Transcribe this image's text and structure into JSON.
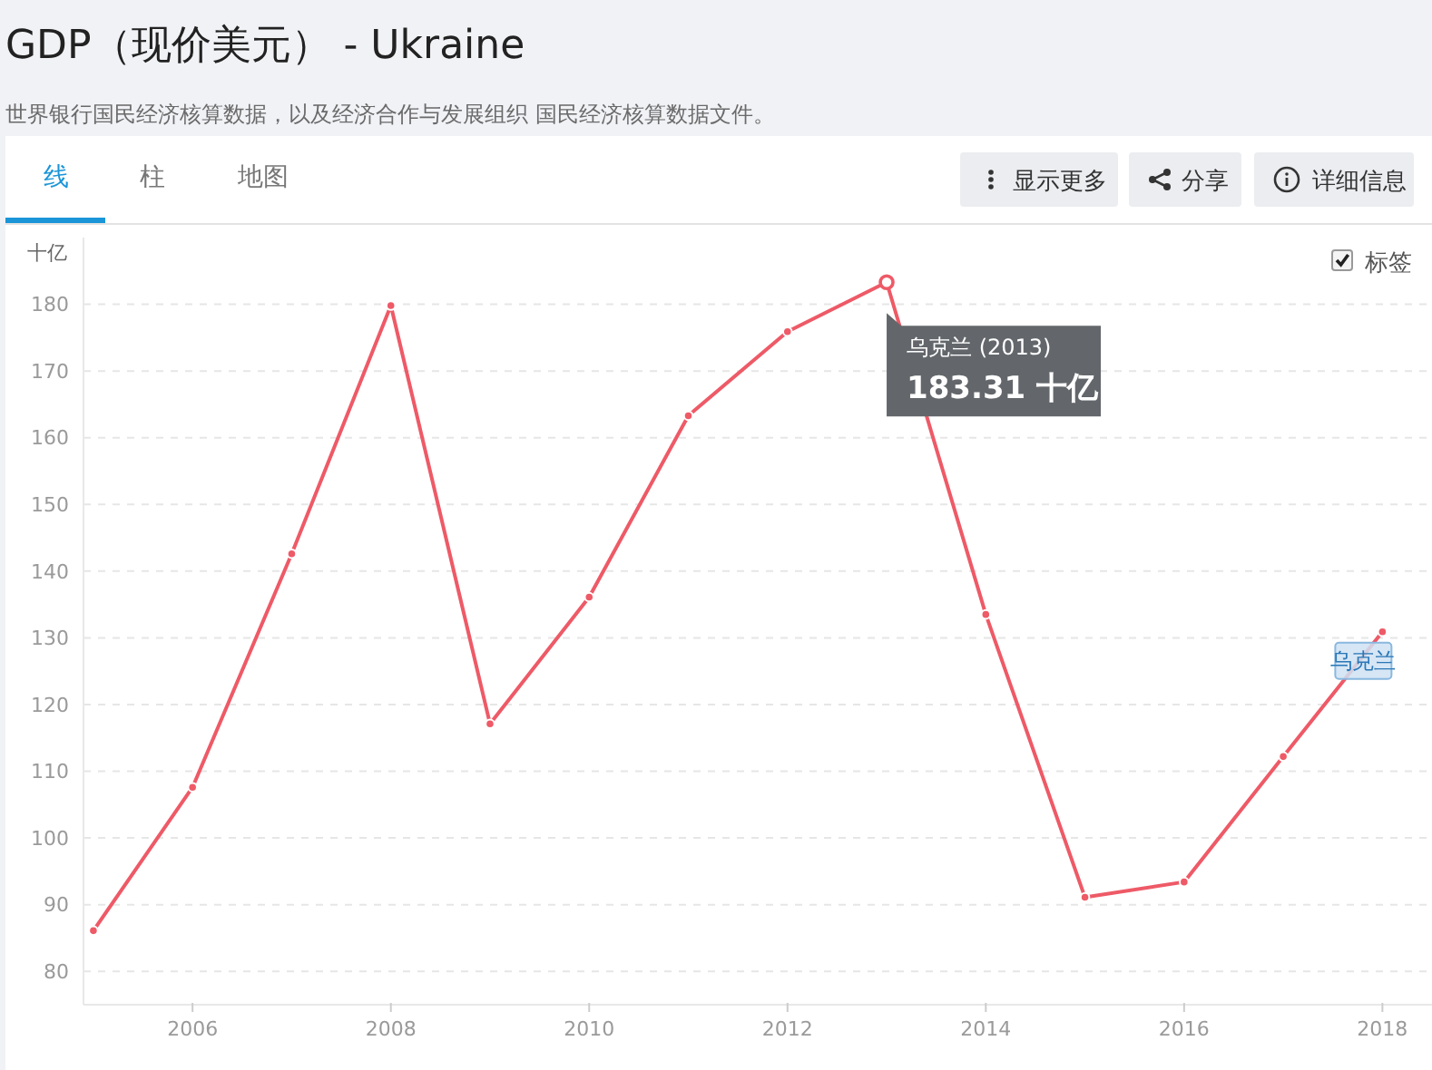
{
  "chart_data": {
    "type": "line",
    "title": "GDP（现价美元） - Ukraine",
    "subtitle": "世界银行国民经济核算数据，以及经济合作与发展组织 国民经济核算数据文件。",
    "ylabel": "十亿",
    "x": [
      2005,
      2006,
      2007,
      2008,
      2009,
      2010,
      2011,
      2012,
      2013,
      2014,
      2015,
      2016,
      2017,
      2018
    ],
    "series": [
      {
        "name": "乌克兰",
        "color": "#ee5a67",
        "values": [
          86.1,
          107.6,
          142.6,
          179.8,
          117.1,
          136.1,
          163.3,
          175.9,
          183.31,
          133.5,
          91.1,
          93.4,
          112.2,
          130.9
        ]
      }
    ],
    "xlim": [
      2004.9,
      2018.5
    ],
    "ylim": [
      75,
      190
    ],
    "xticks": [
      2006,
      2008,
      2010,
      2012,
      2014,
      2016,
      2018
    ],
    "yticks": [
      80,
      90,
      100,
      110,
      120,
      130,
      140,
      150,
      160,
      170,
      180
    ],
    "grid": "y",
    "marker": "circle",
    "annotations": [
      "线",
      "柱",
      "地图",
      "显示更多",
      "分享",
      "详细信息",
      "标签",
      {
        "text": "乌克兰 (2013)\n183.31 十亿",
        "x": 2013,
        "y": 183.31
      }
    ]
  }
}
